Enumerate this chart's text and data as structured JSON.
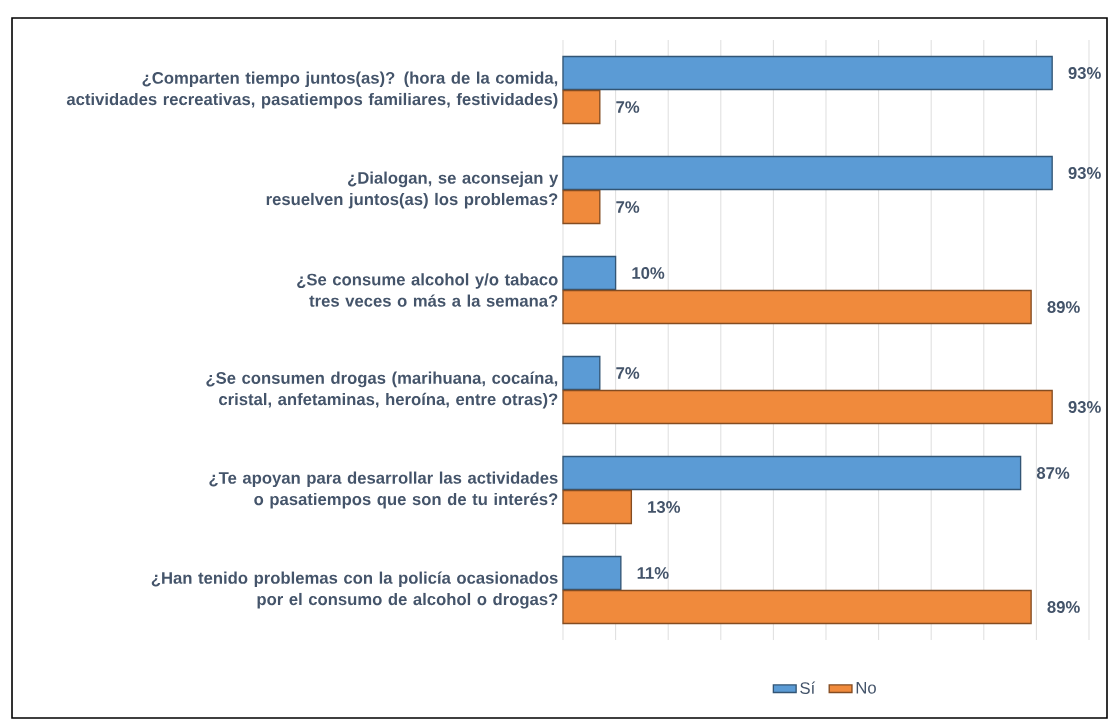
{
  "chart_data": {
    "type": "bar",
    "orientation": "horizontal",
    "categories": [
      "¿Comparten tiempo juntos(as)? (hora de la comida, actividades recreativas, pasatiempos familiares, festividades)",
      "¿Dialogan, se aconsejan y resuelven juntos(as) los problemas?",
      "¿Se consume alcohol y/o tabaco tres veces o más a la semana?",
      "¿Se consumen drogas (marihuana, cocaína, cristal, anfetaminas, heroína, entre otras)?",
      "¿Te apoyan para desarrollar las actividades o pasatiempos que son de tu interés?",
      "¿Han tenido problemas con la policía ocasionados por el consumo de alcohol o drogas?"
    ],
    "series": [
      {
        "name": "Sí",
        "color": "#5b9bd5",
        "values": [
          93,
          93,
          10,
          7,
          87,
          11
        ],
        "value_labels": [
          "93%",
          "93%",
          "10%",
          "7%",
          "87%",
          "11%"
        ]
      },
      {
        "name": "No",
        "color": "#f08a3c",
        "values": [
          7,
          7,
          89,
          93,
          13,
          89
        ],
        "value_labels": [
          "7%",
          "7%",
          "89%",
          "93%",
          "13%",
          "89%"
        ]
      }
    ],
    "xlim": [
      0,
      100
    ],
    "xticks": [
      {
        "value": 0,
        "label": null
      },
      {
        "value": 10,
        "label": null
      },
      {
        "value": 20,
        "label": null
      },
      {
        "value": 30,
        "label": null
      },
      {
        "value": 40,
        "label": null
      },
      {
        "value": 50,
        "label": null
      },
      {
        "value": 60,
        "label": null
      },
      {
        "value": 70,
        "label": null
      },
      {
        "value": 80,
        "label": null
      },
      {
        "value": 90,
        "label": null
      },
      {
        "value": 100,
        "label": null
      }
    ],
    "tick_labels": "y",
    "grid": "x",
    "legend": "bottom"
  }
}
